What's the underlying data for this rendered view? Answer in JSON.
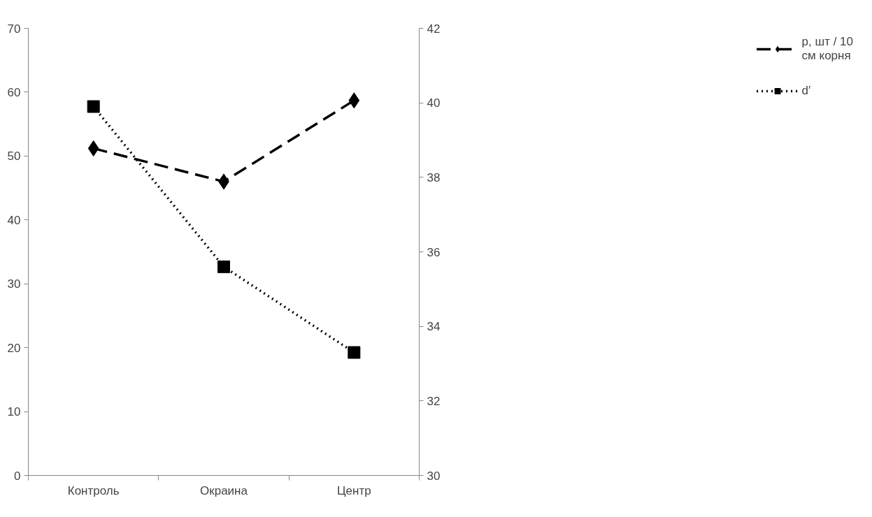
{
  "chart_data": {
    "type": "line",
    "categories": [
      "Контроль",
      "Окраина",
      "Центр"
    ],
    "series": [
      {
        "name": "p, шт / 10 см корня",
        "color": "#000000",
        "values": [
          51.2,
          46.0,
          58.7
        ],
        "marker": "diamond",
        "line_style": "dashed"
      },
      {
        "name": "d′",
        "color": "#000000",
        "values": [
          39.9,
          35.6,
          33.3
        ],
        "marker": "square",
        "line_style": "dotted",
        "axis": "y2"
      }
    ],
    "ylim": [
      0,
      70
    ],
    "yticks": [
      0,
      10,
      20,
      30,
      40,
      50,
      60,
      70
    ],
    "y2lim": [
      30,
      42
    ],
    "y2ticks": [
      30,
      32,
      34,
      36,
      38,
      40,
      42
    ],
    "grid": false,
    "legend": "right"
  }
}
